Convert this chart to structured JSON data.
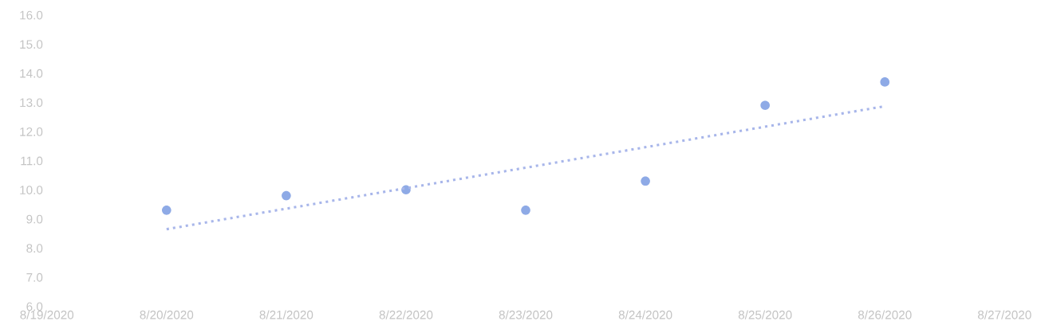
{
  "chart_data": {
    "type": "scatter",
    "x": [
      "2020-08-20",
      "2020-08-21",
      "2020-08-22",
      "2020-08-23",
      "2020-08-24",
      "2020-08-25",
      "2020-08-26"
    ],
    "series": [
      {
        "color": "#8eaae6",
        "marker": "circle",
        "values": [
          9.3,
          9.8,
          10.0,
          9.3,
          10.3,
          12.9,
          13.7
        ]
      },
      {
        "type": "line",
        "color": "#a8b6ea",
        "line_style": "dotted",
        "x": [
          "2020-08-20",
          "2020-08-26"
        ],
        "values": [
          8.65,
          12.87
        ]
      }
    ],
    "xlim": [
      "2020-08-19",
      "2020-08-27"
    ],
    "xticks": [
      {
        "value": "2020-08-19",
        "label": "8/19/2020"
      },
      {
        "value": "2020-08-20",
        "label": "8/20/2020"
      },
      {
        "value": "2020-08-21",
        "label": "8/21/2020"
      },
      {
        "value": "2020-08-22",
        "label": "8/22/2020"
      },
      {
        "value": "2020-08-23",
        "label": "8/23/2020"
      },
      {
        "value": "2020-08-24",
        "label": "8/24/2020"
      },
      {
        "value": "2020-08-25",
        "label": "8/25/2020"
      },
      {
        "value": "2020-08-26",
        "label": "8/26/2020"
      },
      {
        "value": "2020-08-27",
        "label": "8/27/2020"
      }
    ],
    "ylim": [
      6,
      16
    ],
    "yticks": [
      {
        "value": 6,
        "label": "6.0"
      },
      {
        "value": 7,
        "label": "7.0"
      },
      {
        "value": 8,
        "label": "8.0"
      },
      {
        "value": 9,
        "label": "9.0"
      },
      {
        "value": 10,
        "label": "10.0"
      },
      {
        "value": 11,
        "label": "11.0"
      },
      {
        "value": 12,
        "label": "12.0"
      },
      {
        "value": 13,
        "label": "13.0"
      },
      {
        "value": 14,
        "label": "14.0"
      },
      {
        "value": 15,
        "label": "15.0"
      },
      {
        "value": 16,
        "label": "16.0"
      }
    ],
    "grid": false,
    "legend": false
  }
}
